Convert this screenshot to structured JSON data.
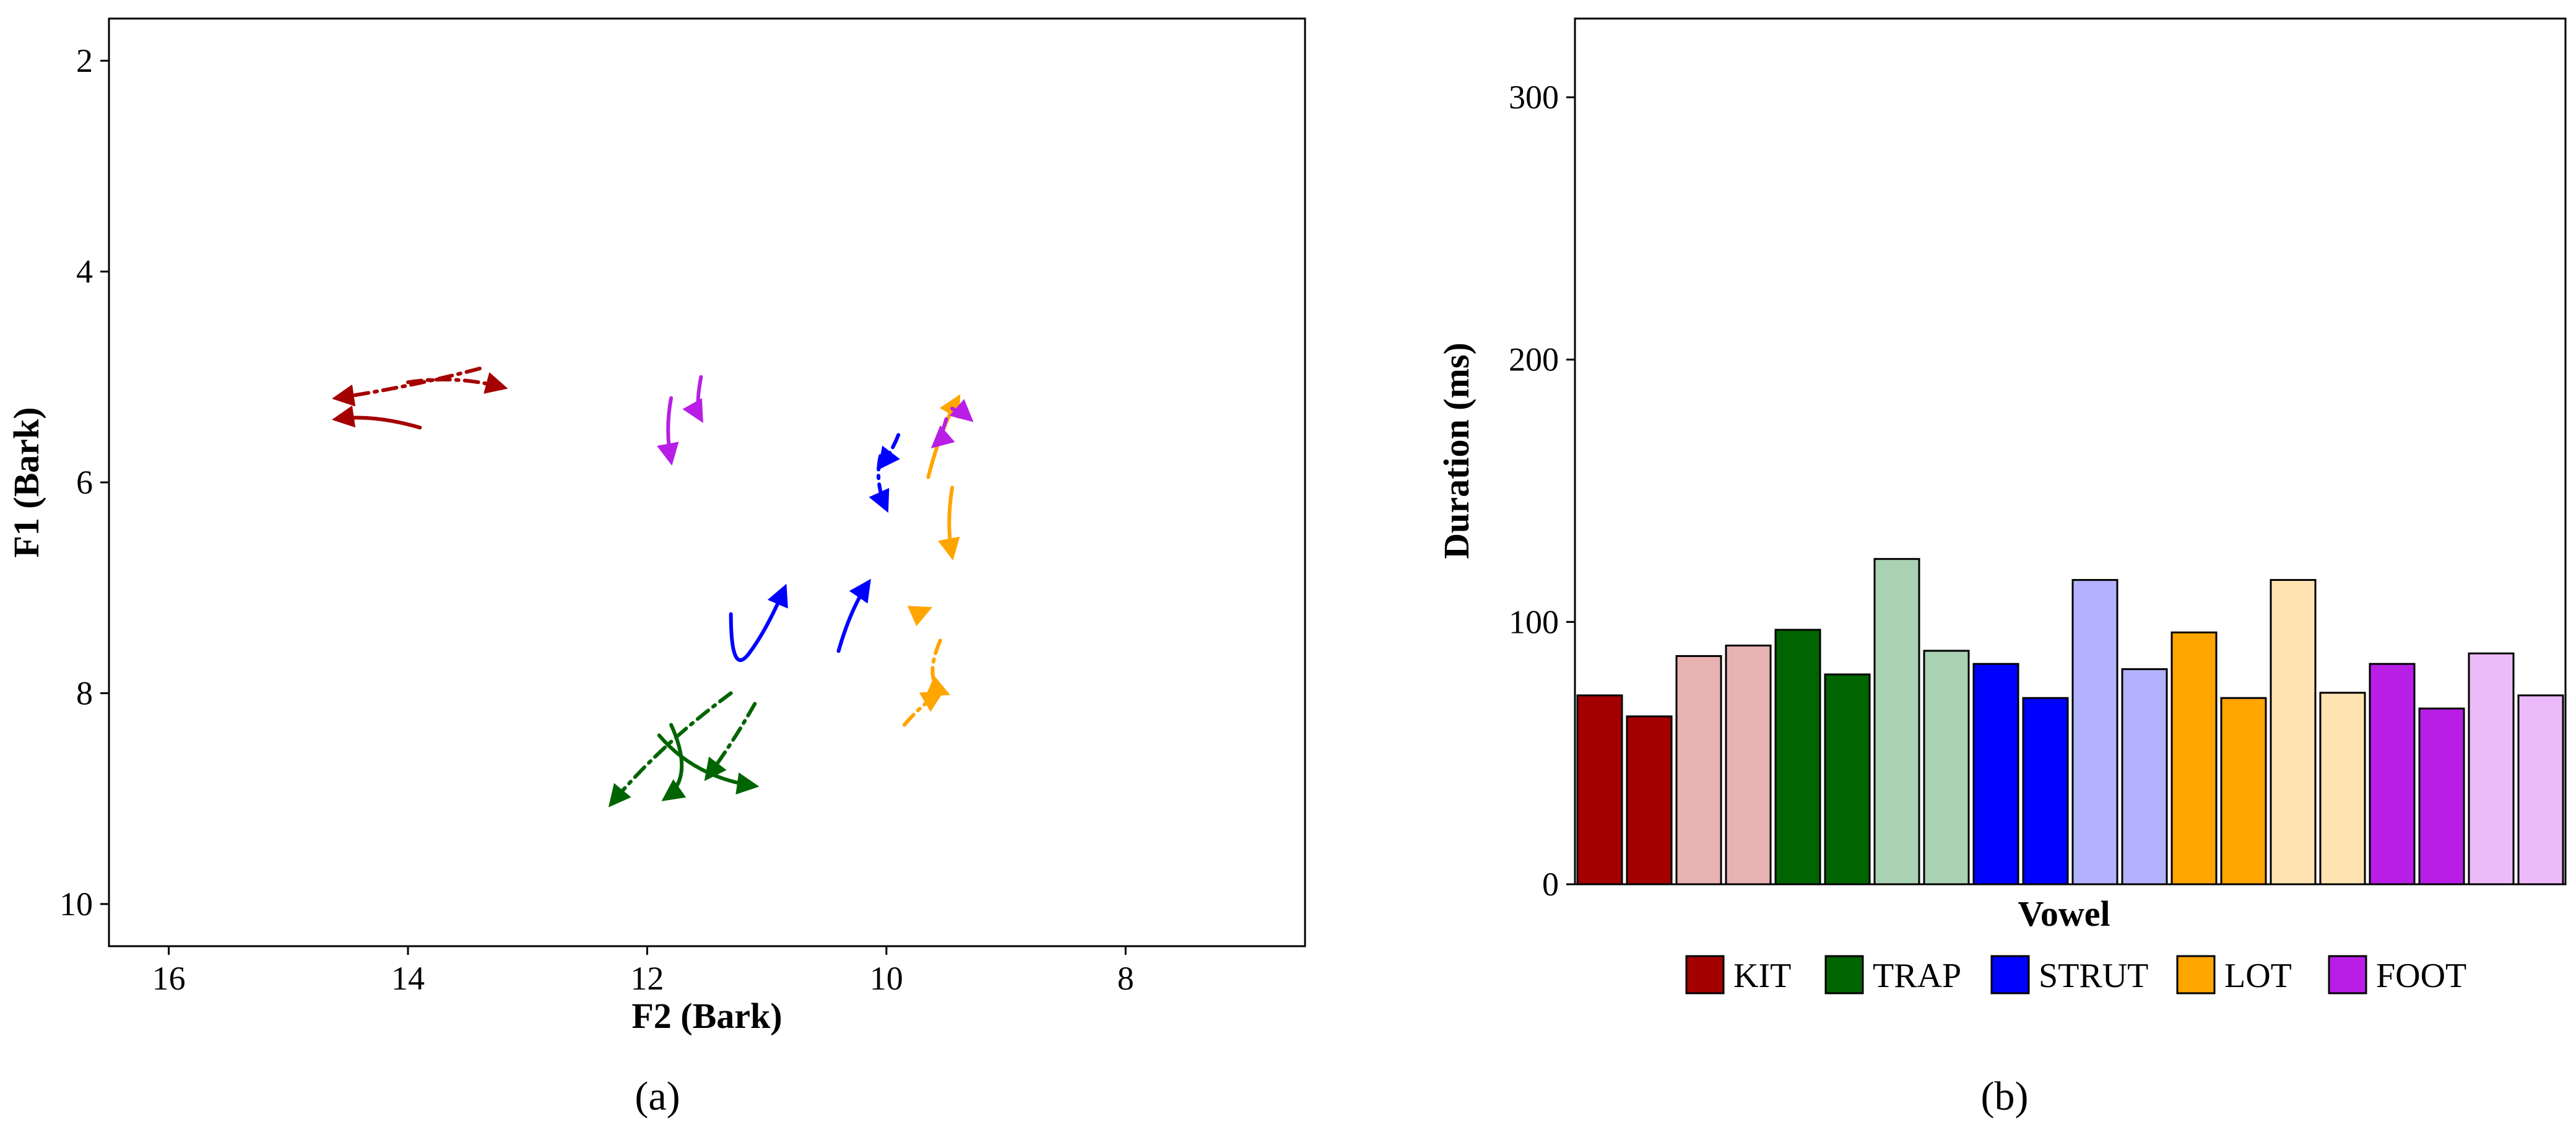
{
  "panel_labels": {
    "a": "(a)",
    "b": "(b)"
  },
  "chart_data": [
    {
      "type": "line",
      "title": "",
      "xlabel": "F2 (Bark)",
      "ylabel": "F1 (Bark)",
      "xlim": [
        16.5,
        6.5
      ],
      "ylim": [
        10.4,
        1.6
      ],
      "x_ticks": [
        "16",
        "14",
        "12",
        "10",
        "8"
      ],
      "y_ticks": [
        "2",
        "4",
        "6",
        "8",
        "10"
      ],
      "colors": {
        "KIT": "#a50000",
        "TRAP": "#006400",
        "STRUT": "#0000ff",
        "LOT": "#ffa500",
        "FOOT": "#b81ee6"
      },
      "series": [
        {
          "name": "KIT",
          "style": "dashdot",
          "points": [
            [
              14.0,
              5.05
            ],
            [
              13.6,
              4.98
            ],
            [
              13.2,
              5.1
            ]
          ]
        },
        {
          "name": "KIT",
          "style": "dashdot",
          "points": [
            [
              13.4,
              4.92
            ],
            [
              14.0,
              5.1
            ],
            [
              14.6,
              5.2
            ]
          ]
        },
        {
          "name": "KIT",
          "style": "solid",
          "points": [
            [
              13.9,
              5.48
            ],
            [
              14.3,
              5.35
            ],
            [
              14.6,
              5.4
            ]
          ]
        },
        {
          "name": "TRAP",
          "style": "dashdot",
          "points": [
            [
              11.3,
              8.0
            ],
            [
              11.9,
              8.5
            ],
            [
              12.3,
              9.05
            ]
          ]
        },
        {
          "name": "TRAP",
          "style": "dashdot",
          "points": [
            [
              11.1,
              8.1
            ],
            [
              11.3,
              8.5
            ],
            [
              11.5,
              8.8
            ]
          ]
        },
        {
          "name": "TRAP",
          "style": "solid",
          "points": [
            [
              11.9,
              8.4
            ],
            [
              11.6,
              8.8
            ],
            [
              11.1,
              8.88
            ]
          ]
        },
        {
          "name": "TRAP",
          "style": "solid",
          "points": [
            [
              11.8,
              8.3
            ],
            [
              11.6,
              8.8
            ],
            [
              11.85,
              9.0
            ]
          ]
        },
        {
          "name": "STRUT",
          "style": "solid",
          "points": [
            [
              11.3,
              7.25
            ],
            [
              11.3,
              7.85
            ],
            [
              11.0,
              7.4
            ],
            [
              10.85,
              7.0
            ]
          ]
        },
        {
          "name": "STRUT",
          "style": "solid",
          "points": [
            [
              10.4,
              7.6
            ],
            [
              10.3,
              7.2
            ],
            [
              10.15,
              6.95
            ]
          ]
        },
        {
          "name": "STRUT",
          "style": "dashdot",
          "points": [
            [
              10.05,
              5.75
            ],
            [
              10.1,
              6.0
            ],
            [
              10.0,
              6.25
            ]
          ]
        },
        {
          "name": "STRUT",
          "style": "dashdot",
          "points": [
            [
              9.9,
              5.55
            ],
            [
              9.95,
              5.7
            ],
            [
              10.05,
              5.85
            ]
          ]
        },
        {
          "name": "LOT",
          "style": "dashdot",
          "points": [
            [
              9.55,
              7.5
            ],
            [
              9.7,
              7.9
            ],
            [
              9.5,
              8.0
            ]
          ]
        },
        {
          "name": "LOT",
          "style": "dashdot",
          "points": [
            [
              9.85,
              8.3
            ],
            [
              9.7,
              8.1
            ],
            [
              9.55,
              8.0
            ]
          ]
        },
        {
          "name": "LOT",
          "style": "dashdot",
          "points": [
            [
              9.75,
              7.25
            ],
            [
              9.65,
              7.2
            ]
          ]
        },
        {
          "name": "LOT",
          "style": "solid",
          "points": [
            [
              9.45,
              6.05
            ],
            [
              9.5,
              6.4
            ],
            [
              9.45,
              6.7
            ]
          ]
        },
        {
          "name": "LOT",
          "style": "solid",
          "points": [
            [
              9.65,
              5.95
            ],
            [
              9.55,
              5.5
            ],
            [
              9.4,
              5.2
            ]
          ]
        },
        {
          "name": "FOOT",
          "style": "solid",
          "points": [
            [
              11.8,
              5.2
            ],
            [
              11.85,
              5.5
            ],
            [
              11.8,
              5.8
            ]
          ]
        },
        {
          "name": "FOOT",
          "style": "solid",
          "points": [
            [
              11.55,
              5.0
            ],
            [
              11.6,
              5.3
            ],
            [
              11.55,
              5.4
            ]
          ]
        },
        {
          "name": "FOOT",
          "style": "solid",
          "points": [
            [
              9.5,
              5.4
            ],
            [
              9.55,
              5.6
            ],
            [
              9.6,
              5.65
            ]
          ]
        },
        {
          "name": "FOOT",
          "style": "solid",
          "points": [
            [
              9.45,
              5.3
            ],
            [
              9.35,
              5.35
            ],
            [
              9.3,
              5.4
            ]
          ]
        }
      ]
    },
    {
      "type": "bar",
      "title": "",
      "xlabel": "Vowel",
      "ylabel": "Duration (ms)",
      "ylim": [
        0,
        330
      ],
      "y_ticks": [
        "0",
        "100",
        "200",
        "300"
      ],
      "values": [
        72,
        64,
        87,
        91,
        97,
        80,
        124,
        89,
        84,
        71,
        116,
        82,
        96,
        71,
        116,
        73,
        84,
        67,
        88,
        72
      ],
      "bar_groups": [
        "KIT",
        "KIT",
        "KIT",
        "KIT",
        "TRAP",
        "TRAP",
        "TRAP",
        "TRAP",
        "STRUT",
        "STRUT",
        "STRUT",
        "STRUT",
        "LOT",
        "LOT",
        "LOT",
        "LOT",
        "FOOT",
        "FOOT",
        "FOOT",
        "FOOT"
      ],
      "bar_colors": [
        "#a50000",
        "#a50000",
        "#e8b2b2",
        "#e8b2b2",
        "#006400",
        "#006400",
        "#a9d2b4",
        "#a9d2b4",
        "#0000ff",
        "#0000ff",
        "#b2b2ff",
        "#b2b2ff",
        "#ffa500",
        "#ffa500",
        "#ffe4b2",
        "#ffe4b2",
        "#b81ee6",
        "#b81ee6",
        "#ecbaf8",
        "#ecbaf8"
      ],
      "legend": [
        {
          "label": "KIT",
          "color": "#a50000"
        },
        {
          "label": "TRAP",
          "color": "#006400"
        },
        {
          "label": "STRUT",
          "color": "#0000ff"
        },
        {
          "label": "LOT",
          "color": "#ffa500"
        },
        {
          "label": "FOOT",
          "color": "#b81ee6"
        }
      ],
      "legend_position": "bottom"
    }
  ]
}
